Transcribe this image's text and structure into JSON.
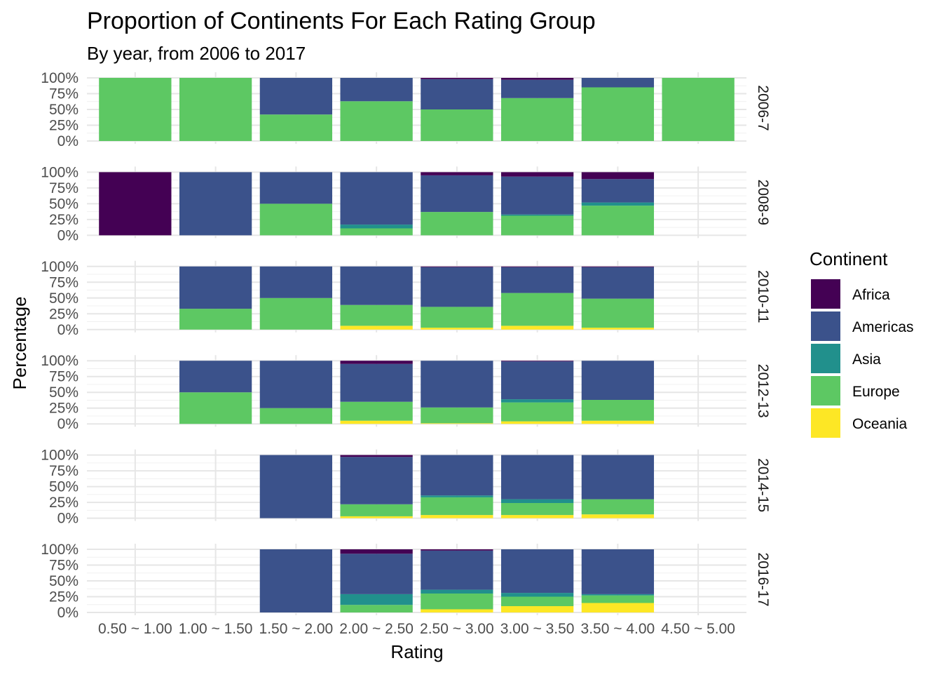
{
  "chart_data": {
    "type": "bar",
    "stacked": "percent",
    "title": "Proportion of Continents For Each Rating Group",
    "subtitle": "By year, from 2006 to 2017",
    "xlabel": "Rating",
    "ylabel": "Percentage",
    "categories": [
      "0.50 ~ 1.00",
      "1.00 ~ 1.50",
      "1.50 ~ 2.00",
      "2.00 ~ 2.50",
      "2.50 ~ 3.00",
      "3.00 ~ 3.50",
      "3.50 ~ 4.00",
      "4.50 ~ 5.00"
    ],
    "y_ticks": [
      "0%",
      "25%",
      "50%",
      "75%",
      "100%"
    ],
    "ylim": [
      0,
      1
    ],
    "grid": true,
    "legend": {
      "title": "Continent",
      "position": "right",
      "items": [
        {
          "name": "Africa",
          "color": "#440154"
        },
        {
          "name": "Americas",
          "color": "#3b528b"
        },
        {
          "name": "Asia",
          "color": "#21908c"
        },
        {
          "name": "Europe",
          "color": "#5dc863"
        },
        {
          "name": "Oceania",
          "color": "#fde725"
        }
      ]
    },
    "stack_order_bottom_to_top": [
      "Oceania",
      "Europe",
      "Asia",
      "Americas",
      "Africa"
    ],
    "facets": [
      {
        "label": "2006-7",
        "bars": [
          {
            "Africa": 0,
            "Americas": 0,
            "Asia": 0,
            "Europe": 1.0,
            "Oceania": 0
          },
          {
            "Africa": 0,
            "Americas": 0,
            "Asia": 0,
            "Europe": 1.0,
            "Oceania": 0
          },
          {
            "Africa": 0,
            "Americas": 0.58,
            "Asia": 0,
            "Europe": 0.42,
            "Oceania": 0
          },
          {
            "Africa": 0,
            "Americas": 0.37,
            "Asia": 0,
            "Europe": 0.63,
            "Oceania": 0
          },
          {
            "Africa": 0.02,
            "Americas": 0.48,
            "Asia": 0,
            "Europe": 0.5,
            "Oceania": 0
          },
          {
            "Africa": 0.03,
            "Americas": 0.29,
            "Asia": 0,
            "Europe": 0.68,
            "Oceania": 0
          },
          {
            "Africa": 0,
            "Americas": 0.15,
            "Asia": 0,
            "Europe": 0.85,
            "Oceania": 0
          },
          {
            "Africa": 0,
            "Americas": 0,
            "Asia": 0,
            "Europe": 1.0,
            "Oceania": 0
          }
        ]
      },
      {
        "label": "2008-9",
        "bars": [
          {
            "Africa": 1.0,
            "Americas": 0,
            "Asia": 0,
            "Europe": 0,
            "Oceania": 0
          },
          {
            "Africa": 0,
            "Americas": 1.0,
            "Asia": 0,
            "Europe": 0,
            "Oceania": 0
          },
          {
            "Africa": 0,
            "Americas": 0.5,
            "Asia": 0,
            "Europe": 0.5,
            "Oceania": 0
          },
          {
            "Africa": 0,
            "Americas": 0.83,
            "Asia": 0.06,
            "Europe": 0.11,
            "Oceania": 0
          },
          {
            "Africa": 0.05,
            "Americas": 0.58,
            "Asia": 0,
            "Europe": 0.37,
            "Oceania": 0
          },
          {
            "Africa": 0.07,
            "Americas": 0.6,
            "Asia": 0.02,
            "Europe": 0.31,
            "Oceania": 0
          },
          {
            "Africa": 0.11,
            "Americas": 0.37,
            "Asia": 0.05,
            "Europe": 0.47,
            "Oceania": 0
          }
        ]
      },
      {
        "label": "2010-11",
        "bars": [
          null,
          {
            "Africa": 0,
            "Americas": 0.67,
            "Asia": 0,
            "Europe": 0.33,
            "Oceania": 0
          },
          {
            "Africa": 0,
            "Americas": 0.5,
            "Asia": 0,
            "Europe": 0.5,
            "Oceania": 0
          },
          {
            "Africa": 0,
            "Americas": 0.61,
            "Asia": 0,
            "Europe": 0.33,
            "Oceania": 0.06
          },
          {
            "Africa": 0.01,
            "Americas": 0.63,
            "Asia": 0,
            "Europe": 0.33,
            "Oceania": 0.03
          },
          {
            "Africa": 0.01,
            "Americas": 0.41,
            "Asia": 0,
            "Europe": 0.52,
            "Oceania": 0.06
          },
          {
            "Africa": 0.01,
            "Americas": 0.5,
            "Asia": 0,
            "Europe": 0.46,
            "Oceania": 0.03
          }
        ]
      },
      {
        "label": "2012-13",
        "bars": [
          null,
          {
            "Africa": 0,
            "Americas": 0.5,
            "Asia": 0,
            "Europe": 0.5,
            "Oceania": 0
          },
          {
            "Africa": 0,
            "Americas": 0.75,
            "Asia": 0,
            "Europe": 0.25,
            "Oceania": 0
          },
          {
            "Africa": 0.05,
            "Americas": 0.6,
            "Asia": 0,
            "Europe": 0.3,
            "Oceania": 0.05
          },
          {
            "Africa": 0,
            "Americas": 0.74,
            "Asia": 0,
            "Europe": 0.25,
            "Oceania": 0.01
          },
          {
            "Africa": 0.01,
            "Americas": 0.6,
            "Asia": 0.05,
            "Europe": 0.3,
            "Oceania": 0.04
          },
          {
            "Africa": 0,
            "Americas": 0.62,
            "Asia": 0,
            "Europe": 0.33,
            "Oceania": 0.05
          }
        ]
      },
      {
        "label": "2014-15",
        "bars": [
          null,
          null,
          {
            "Africa": 0,
            "Americas": 1.0,
            "Asia": 0,
            "Europe": 0,
            "Oceania": 0
          },
          {
            "Africa": 0.03,
            "Americas": 0.75,
            "Asia": 0,
            "Europe": 0.19,
            "Oceania": 0.03
          },
          {
            "Africa": 0,
            "Americas": 0.64,
            "Asia": 0.03,
            "Europe": 0.28,
            "Oceania": 0.05
          },
          {
            "Africa": 0,
            "Americas": 0.7,
            "Asia": 0.06,
            "Europe": 0.19,
            "Oceania": 0.05
          },
          {
            "Africa": 0,
            "Americas": 0.7,
            "Asia": 0,
            "Europe": 0.24,
            "Oceania": 0.06
          }
        ]
      },
      {
        "label": "2016-17",
        "bars": [
          null,
          null,
          {
            "Africa": 0,
            "Americas": 1.0,
            "Asia": 0,
            "Europe": 0,
            "Oceania": 0
          },
          {
            "Africa": 0.07,
            "Americas": 0.64,
            "Asia": 0.17,
            "Europe": 0.12,
            "Oceania": 0
          },
          {
            "Africa": 0.02,
            "Americas": 0.62,
            "Asia": 0.06,
            "Europe": 0.25,
            "Oceania": 0.05
          },
          {
            "Africa": 0,
            "Americas": 0.69,
            "Asia": 0.06,
            "Europe": 0.15,
            "Oceania": 0.1
          },
          {
            "Africa": 0,
            "Americas": 0.71,
            "Asia": 0.02,
            "Europe": 0.12,
            "Oceania": 0.15
          }
        ]
      }
    ]
  }
}
